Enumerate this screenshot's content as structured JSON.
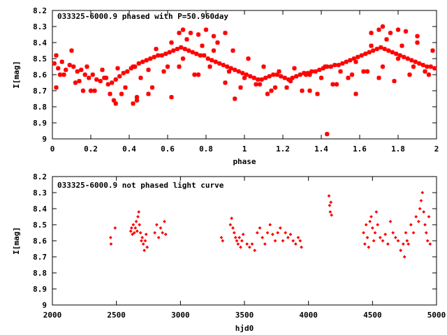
{
  "chart_data": [
    {
      "type": "scatter",
      "title": "033325-6000.9 phased with P=50.960day",
      "xlabel": "phase",
      "ylabel": "I[mag]",
      "xlim": [
        0,
        2
      ],
      "ylim": [
        9,
        8.2
      ],
      "y_inverted": true,
      "x_ticks": [
        "0",
        "0.2",
        "0.4",
        "0.6",
        "0.8",
        "1",
        "1.2",
        "1.4",
        "1.6",
        "1.8",
        "2"
      ],
      "y_ticks": [
        "8.2",
        "8.3",
        "8.4",
        "8.5",
        "8.6",
        "8.7",
        "8.8",
        "8.9",
        "9"
      ],
      "marker": "star",
      "color": "#ff0000",
      "grid": false,
      "series": [
        {
          "x": [
            0.01,
            0.03,
            0.05,
            0.07,
            0.09,
            0.11,
            0.13,
            0.15,
            0.17,
            0.19,
            0.21,
            0.23,
            0.25,
            0.27,
            0.29,
            0.31,
            0.33,
            0.35,
            0.37,
            0.39,
            0.41,
            0.43,
            0.45,
            0.47,
            0.49,
            0.51,
            0.53,
            0.55,
            0.57,
            0.59,
            0.61,
            0.63,
            0.65,
            0.67,
            0.69,
            0.71,
            0.73,
            0.75,
            0.77,
            0.79,
            0.81,
            0.83,
            0.85,
            0.87,
            0.89,
            0.91,
            0.93,
            0.95,
            0.97,
            0.99,
            1.01,
            1.03,
            1.05,
            1.07,
            1.09,
            1.11,
            1.13,
            1.15,
            1.17,
            1.19,
            1.21,
            1.23,
            1.25,
            1.27,
            1.29,
            1.31,
            1.33,
            1.35,
            1.37,
            1.39,
            1.41,
            1.43,
            1.45,
            1.47,
            1.49,
            1.51,
            1.53,
            1.55,
            1.57,
            1.59,
            1.61,
            1.63,
            1.65,
            1.67,
            1.69,
            1.71,
            1.73,
            1.75,
            1.77,
            1.79,
            1.81,
            1.83,
            1.85,
            1.87,
            1.89,
            1.91,
            1.93,
            1.95,
            1.97,
            1.99,
            0.02,
            0.06,
            0.1,
            0.14,
            0.18,
            0.22,
            0.26,
            0.3,
            0.34,
            0.38,
            0.42,
            0.46,
            0.5,
            0.54,
            0.58,
            0.62,
            0.66,
            0.7,
            0.74,
            0.78,
            0.82,
            0.86,
            0.9,
            0.94,
            0.98,
            1.02,
            1.06,
            1.1,
            1.14,
            1.18,
            1.22,
            1.26,
            1.3,
            1.34,
            1.38,
            1.42,
            1.46,
            1.5,
            1.54,
            1.58,
            1.62,
            1.66,
            1.7,
            1.74,
            1.78,
            1.82,
            1.86,
            1.9,
            1.94,
            1.98,
            0.04,
            0.12,
            0.2,
            0.28,
            0.36,
            0.44,
            0.52,
            0.6,
            0.68,
            0.76,
            0.84,
            0.92,
            1.0,
            1.08,
            1.16,
            1.24,
            1.32,
            1.4,
            1.48,
            1.56,
            1.64,
            1.72,
            1.8,
            1.88,
            1.96,
            0.66,
            0.68,
            0.72,
            0.76,
            0.8,
            0.84,
            0.9,
            1.66,
            1.7,
            1.72,
            1.76,
            1.8,
            1.84,
            1.9,
            1.43,
            0.95,
            0.42,
            0.44,
            0.33,
            0.62,
            0.02,
            0.16,
            0.32,
            0.5,
            1.12,
            1.34,
            1.58
          ],
          "y": [
            8.53,
            8.56,
            8.52,
            8.57,
            8.54,
            8.55,
            8.58,
            8.57,
            8.6,
            8.62,
            8.6,
            8.63,
            8.64,
            8.62,
            8.66,
            8.65,
            8.63,
            8.61,
            8.59,
            8.58,
            8.56,
            8.55,
            8.53,
            8.52,
            8.51,
            8.5,
            8.49,
            8.48,
            8.48,
            8.47,
            8.46,
            8.45,
            8.44,
            8.43,
            8.44,
            8.45,
            8.46,
            8.47,
            8.48,
            8.48,
            8.5,
            8.51,
            8.52,
            8.53,
            8.54,
            8.55,
            8.56,
            8.57,
            8.58,
            8.59,
            8.6,
            8.61,
            8.62,
            8.63,
            8.63,
            8.62,
            8.61,
            8.6,
            8.6,
            8.61,
            8.62,
            8.63,
            8.62,
            8.61,
            8.6,
            8.59,
            8.59,
            8.58,
            8.58,
            8.57,
            8.56,
            8.55,
            8.55,
            8.54,
            8.54,
            8.53,
            8.52,
            8.51,
            8.5,
            8.49,
            8.48,
            8.47,
            8.46,
            8.45,
            8.44,
            8.43,
            8.44,
            8.45,
            8.46,
            8.47,
            8.48,
            8.49,
            8.5,
            8.51,
            8.52,
            8.53,
            8.54,
            8.55,
            8.55,
            8.56,
            8.48,
            8.6,
            8.45,
            8.64,
            8.55,
            8.7,
            8.57,
            8.72,
            8.56,
            8.68,
            8.55,
            8.62,
            8.57,
            8.44,
            8.58,
            8.4,
            8.55,
            8.38,
            8.6,
            8.42,
            8.55,
            8.4,
            8.65,
            8.45,
            8.68,
            8.5,
            8.66,
            8.55,
            8.7,
            8.58,
            8.68,
            8.56,
            8.7,
            8.6,
            8.72,
            8.55,
            8.66,
            8.58,
            8.62,
            8.52,
            8.58,
            8.42,
            8.62,
            8.38,
            8.64,
            8.42,
            8.6,
            8.4,
            8.58,
            8.45,
            8.6,
            8.65,
            8.7,
            8.62,
            8.72,
            8.74,
            8.68,
            8.55,
            8.5,
            8.6,
            8.45,
            8.58,
            8.62,
            8.66,
            8.68,
            8.64,
            8.6,
            8.62,
            8.66,
            8.6,
            8.58,
            8.55,
            8.5,
            8.55,
            8.6,
            8.34,
            8.32,
            8.34,
            8.35,
            8.32,
            8.36,
            8.34,
            8.34,
            8.32,
            8.3,
            8.34,
            8.32,
            8.33,
            8.36,
            8.97,
            8.75,
            8.78,
            8.76,
            8.78,
            8.74,
            8.68,
            8.7,
            8.76,
            8.72,
            8.72,
            8.7,
            8.72
          ]
        }
      ]
    },
    {
      "type": "scatter",
      "title": "033325-6000.9 not phased light curve",
      "xlabel": "hjd0",
      "ylabel": "I[mag]",
      "xlim": [
        2000,
        5000
      ],
      "ylim": [
        9,
        8.2
      ],
      "y_inverted": true,
      "x_ticks": [
        "2000",
        "2500",
        "3000",
        "3500",
        "4000",
        "4500",
        "5000"
      ],
      "y_ticks": [
        "8.2",
        "8.3",
        "8.4",
        "8.5",
        "8.6",
        "8.7",
        "8.8",
        "8.9",
        "9"
      ],
      "marker": "diamond",
      "color": "#ff0000",
      "grid": false,
      "series": [
        {
          "x": [
            2455,
            2458,
            2490,
            2612,
            2618,
            2625,
            2632,
            2640,
            2648,
            2655,
            2662,
            2668,
            2675,
            2680,
            2688,
            2695,
            2702,
            2710,
            2718,
            2725,
            2732,
            2740,
            2800,
            2815,
            2830,
            2845,
            2860,
            2875,
            2885,
            3320,
            3330,
            3390,
            3400,
            3410,
            3420,
            3430,
            3440,
            3450,
            3460,
            3470,
            3480,
            3490,
            3520,
            3540,
            3560,
            3580,
            3600,
            3620,
            3640,
            3660,
            3680,
            3700,
            3720,
            3740,
            3760,
            3780,
            3800,
            3820,
            3840,
            3860,
            3880,
            3900,
            3920,
            3935,
            3945,
            4160,
            4165,
            4170,
            4175,
            4180,
            4430,
            4440,
            4450,
            4460,
            4470,
            4480,
            4490,
            4500,
            4510,
            4520,
            4530,
            4540,
            4560,
            4580,
            4600,
            4620,
            4640,
            4660,
            4680,
            4700,
            4720,
            4740,
            4750,
            4760,
            4770,
            4780,
            4800,
            4820,
            4840,
            4860,
            4870,
            4880,
            4890,
            4900,
            4910,
            4920,
            4930,
            4940,
            4950
          ],
          "y": [
            8.58,
            8.62,
            8.52,
            8.54,
            8.52,
            8.56,
            8.5,
            8.55,
            8.52,
            8.48,
            8.54,
            8.45,
            8.42,
            8.5,
            8.55,
            8.6,
            8.58,
            8.62,
            8.66,
            8.6,
            8.56,
            8.64,
            8.55,
            8.5,
            8.58,
            8.52,
            8.55,
            8.48,
            8.56,
            8.58,
            8.6,
            8.5,
            8.46,
            8.52,
            8.55,
            8.58,
            8.6,
            8.62,
            8.58,
            8.64,
            8.6,
            8.56,
            8.62,
            8.64,
            8.62,
            8.66,
            8.55,
            8.52,
            8.58,
            8.62,
            8.55,
            8.5,
            8.56,
            8.6,
            8.55,
            8.52,
            8.6,
            8.55,
            8.58,
            8.56,
            8.6,
            8.62,
            8.58,
            8.6,
            8.64,
            8.32,
            8.38,
            8.42,
            8.36,
            8.44,
            8.55,
            8.62,
            8.5,
            8.58,
            8.64,
            8.48,
            8.45,
            8.52,
            8.6,
            8.55,
            8.42,
            8.5,
            8.58,
            8.6,
            8.56,
            8.62,
            8.48,
            8.55,
            8.58,
            8.6,
            8.66,
            8.62,
            8.7,
            8.55,
            8.6,
            8.62,
            8.5,
            8.55,
            8.45,
            8.48,
            8.4,
            8.35,
            8.3,
            8.42,
            8.5,
            8.55,
            8.6,
            8.45,
            8.62
          ]
        }
      ]
    }
  ]
}
